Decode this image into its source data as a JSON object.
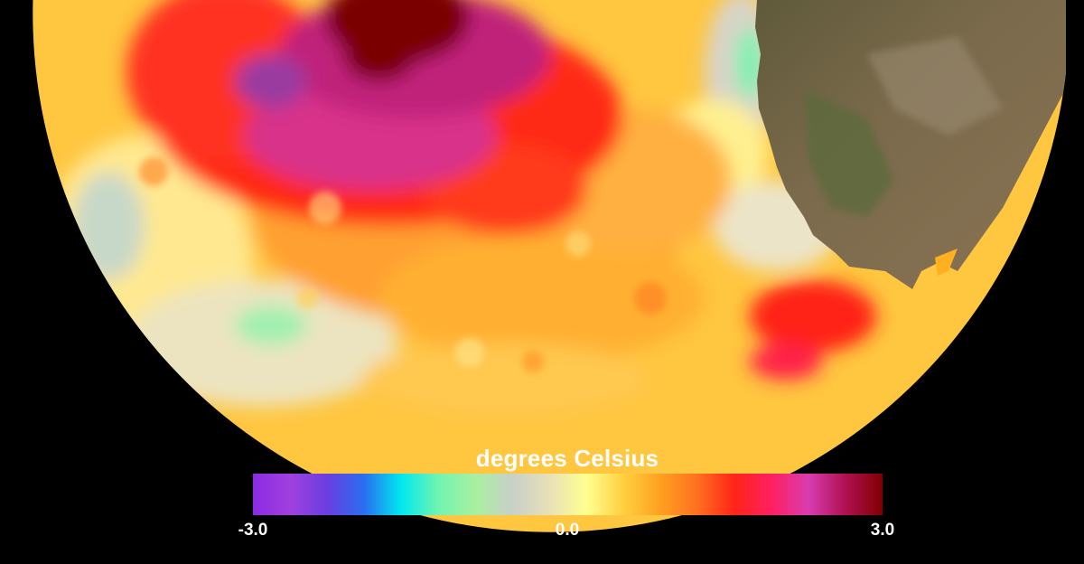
{
  "legend": {
    "title": "degrees Celsius",
    "ticks": [
      "-3.0",
      "0.0",
      "3.0"
    ],
    "colors": [
      "#8a2be2",
      "#a040e0",
      "#6a3ee0",
      "#2a6ef0",
      "#00e8f0",
      "#70f4b0",
      "#a8f0a0",
      "#c8d0c8",
      "#e8e0b8",
      "#ffff90",
      "#ffd040",
      "#ffa020",
      "#ff7020",
      "#ff2418",
      "#ff2060",
      "#d83cb0",
      "#b01050",
      "#800000"
    ]
  },
  "map": {
    "ocean_anomaly_colors": {
      "hot": "#ff2418",
      "very_hot": "#c0207a",
      "extreme": "#7a0000",
      "warm": "#ffb020",
      "mild": "#ffe070",
      "neutral": "#d8d4c8",
      "cool": "#80f0b0"
    },
    "land_color": "#6b5a3e"
  }
}
